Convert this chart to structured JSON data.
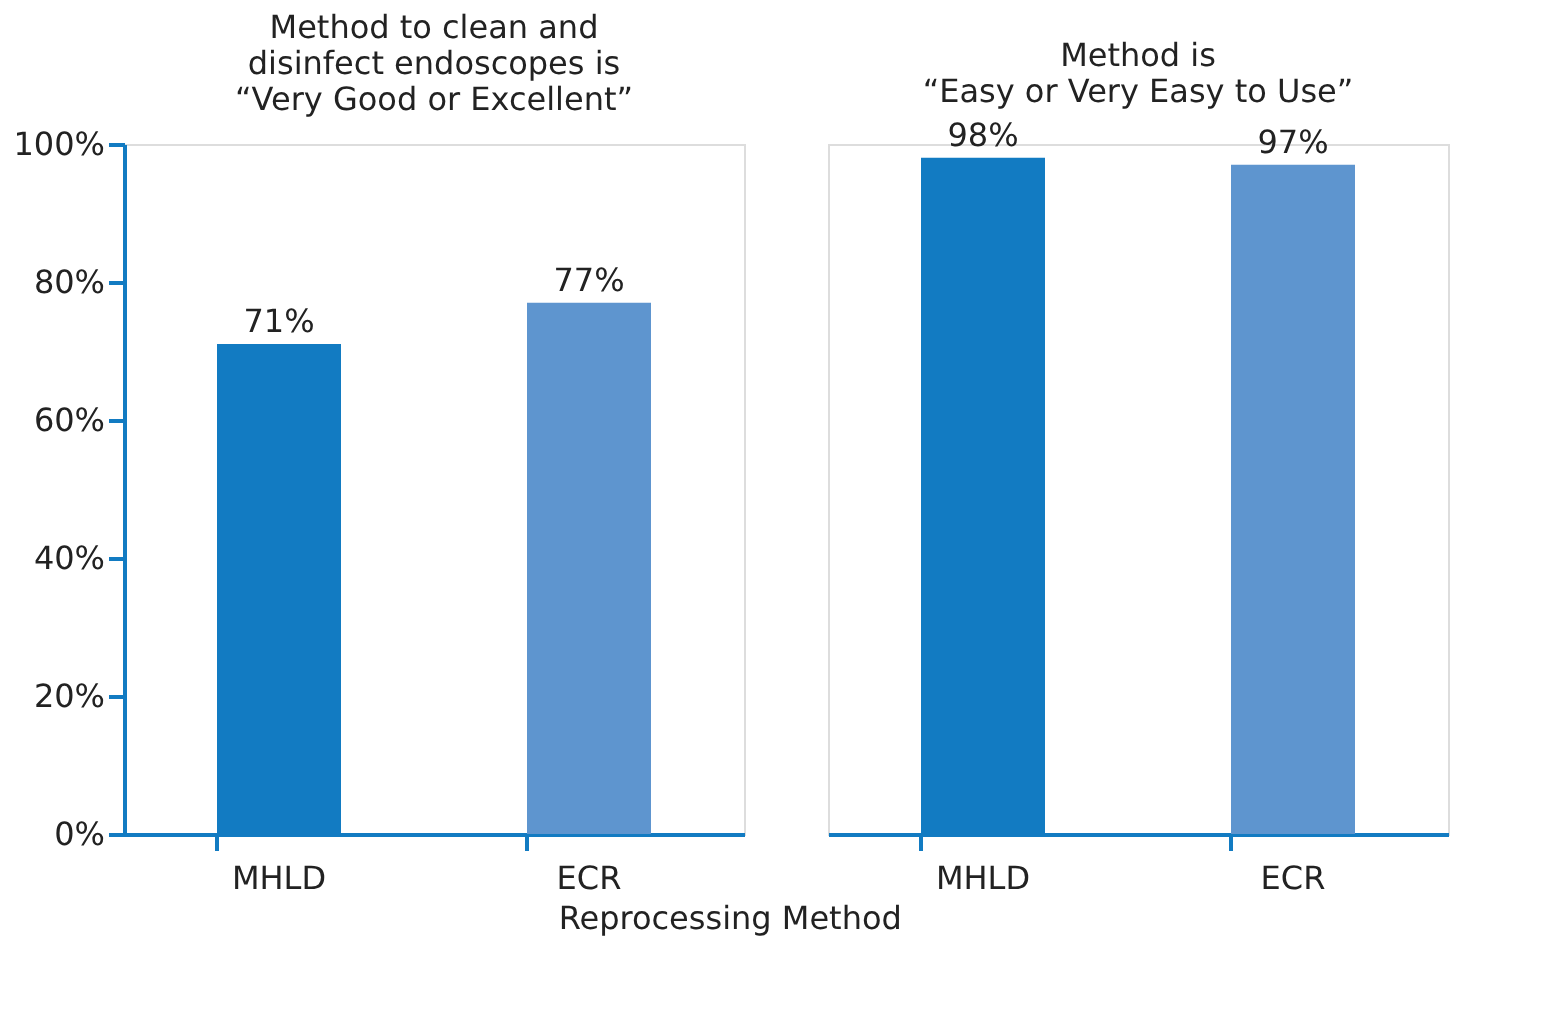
{
  "chart_data": [
    {
      "type": "bar",
      "title": "Method to clean and\ndisinfect endoscopes is\n“Very Good or Excellent”",
      "xlabel": "Reprocessing Method",
      "categories": [
        "MHLD",
        "ECR"
      ],
      "values": [
        71,
        77
      ],
      "colors": [
        "#127bc2",
        "#5e95cf"
      ],
      "value_labels": [
        "71%",
        "77%"
      ],
      "ylim": [
        0,
        100
      ],
      "yticks": [
        {
          "value": 0,
          "label": "0%"
        },
        {
          "value": 20,
          "label": "20%"
        },
        {
          "value": 40,
          "label": "40%"
        },
        {
          "value": 60,
          "label": "60%"
        },
        {
          "value": 80,
          "label": "80%"
        },
        {
          "value": 100,
          "label": "100%"
        }
      ],
      "grid": false
    },
    {
      "type": "bar",
      "title": "Method is\n“Easy or Very Easy to Use”",
      "categories": [
        "MHLD",
        "ECR"
      ],
      "values": [
        98,
        97
      ],
      "colors": [
        "#127bc2",
        "#5e95cf"
      ],
      "value_labels": [
        "98%",
        "97%"
      ],
      "ylim": [
        0,
        100
      ],
      "grid": false,
      "tick_labels": "x"
    }
  ]
}
